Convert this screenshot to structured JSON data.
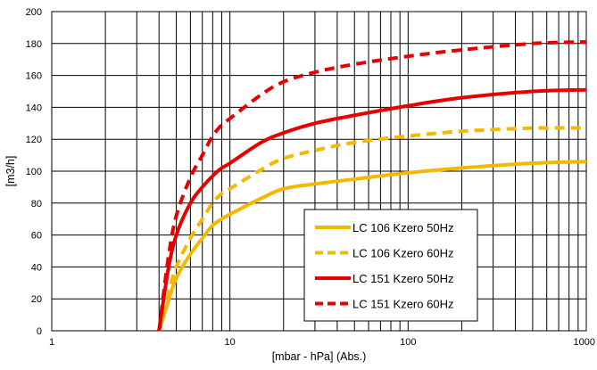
{
  "chart_data": {
    "type": "line",
    "xlabel": "[mbar - hPa] (Abs.)",
    "ylabel": "[m3/h]",
    "xscale": "log",
    "xlim": [
      1,
      1000
    ],
    "ylim": [
      0,
      200
    ],
    "x_ticks": [
      1,
      10,
      100,
      1000
    ],
    "x_tick_labels": [
      "1",
      "10",
      "100",
      "1000"
    ],
    "y_ticks": [
      0,
      20,
      40,
      60,
      80,
      100,
      120,
      140,
      160,
      180,
      200
    ],
    "y_tick_labels": [
      "0",
      "20",
      "40",
      "60",
      "80",
      "100",
      "120",
      "140",
      "160",
      "180",
      "200"
    ],
    "grid": true,
    "legend_position": "bottom-right",
    "series": [
      {
        "name": "LC 106 Kzero 50Hz",
        "color": "#f5b800",
        "style": "solid",
        "x": [
          4,
          4.5,
          5,
          6,
          7,
          8,
          9,
          10,
          15,
          20,
          30,
          50,
          100,
          200,
          500,
          1000
        ],
        "y": [
          0,
          18,
          33,
          48,
          58,
          66,
          70,
          73,
          83,
          89,
          92,
          95,
          99,
          102,
          105,
          106
        ]
      },
      {
        "name": "LC 106 Kzero 60Hz",
        "color": "#f5b800",
        "style": "dashed",
        "x": [
          4,
          4.5,
          5,
          6,
          7,
          8,
          9,
          10,
          15,
          20,
          30,
          50,
          100,
          200,
          500,
          1000
        ],
        "y": [
          0,
          22,
          40,
          58,
          70,
          80,
          86,
          89,
          101,
          108,
          113,
          118,
          122,
          125,
          127,
          127
        ]
      },
      {
        "name": "LC 151 Kzero 50Hz",
        "color": "#e60000",
        "style": "solid",
        "x": [
          4,
          4.5,
          5,
          6,
          7,
          8,
          9,
          10,
          15,
          20,
          30,
          50,
          100,
          200,
          500,
          1000
        ],
        "y": [
          0,
          38,
          60,
          80,
          90,
          97,
          102,
          105,
          118,
          124,
          130,
          135,
          141,
          146,
          150,
          151
        ]
      },
      {
        "name": "LC 151 Kzero 60Hz",
        "color": "#e60000",
        "style": "dashed",
        "x": [
          4,
          4.5,
          5,
          6,
          7,
          8,
          9,
          10,
          15,
          20,
          30,
          50,
          100,
          200,
          500,
          1000
        ],
        "y": [
          0,
          45,
          72,
          96,
          110,
          122,
          129,
          133,
          148,
          156,
          162,
          167,
          172,
          176,
          180,
          181
        ]
      }
    ]
  }
}
